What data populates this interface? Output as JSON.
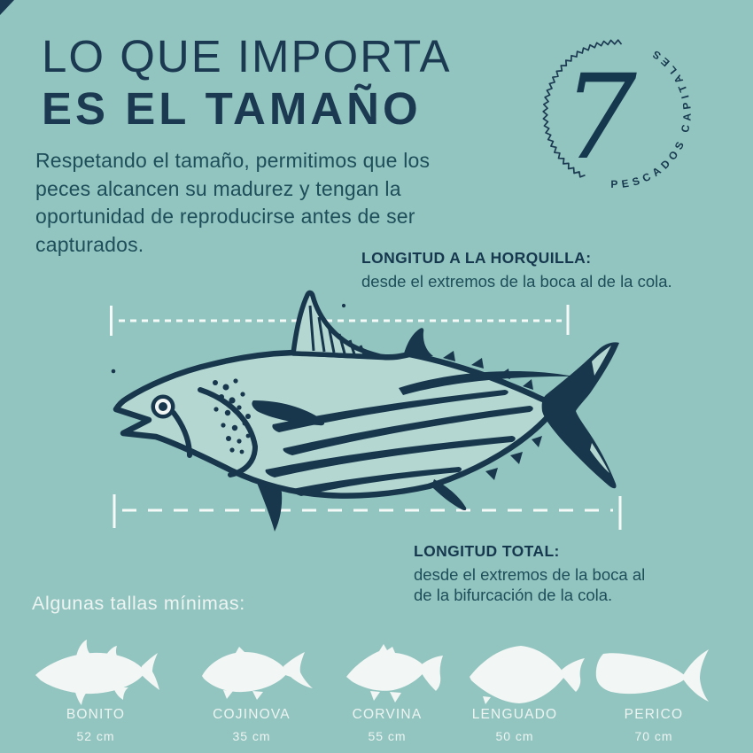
{
  "colors": {
    "background": "#93c5c0",
    "navy": "#1b3a52",
    "teal_text": "#1d4e5a",
    "white_text": "#edf4f2",
    "fish_fill": "#b4d7d1",
    "silhouette": "#f2f6f4"
  },
  "header": {
    "title_line1": "LO QUE IMPORTA",
    "title_line2": "ES EL TAMAÑO",
    "paragraph": "Respetando el tamaño, permitimos que los\npeces alcancen su madurez y tengan la\noportunidad de reproducirse antes de ser\ncapturados."
  },
  "badge": {
    "number": "7",
    "ring_text": "PESCADOS CAPITALES"
  },
  "measurements": {
    "fork": {
      "label": "LONGITUD A LA HORQUILLA:",
      "description": "desde el extremos de la boca al de la cola."
    },
    "total": {
      "label": "LONGITUD TOTAL:",
      "description": "desde el extremos de la boca al\nde la bifurcación de la cola."
    }
  },
  "min_sizes": {
    "heading": "Algunas tallas mínimas:",
    "fishes": [
      {
        "name": "BONITO",
        "size": "52 cm"
      },
      {
        "name": "COJINOVA",
        "size": "35 cm"
      },
      {
        "name": "CORVINA",
        "size": "55 cm"
      },
      {
        "name": "LENGUADO",
        "size": "50 cm"
      },
      {
        "name": "PERICO",
        "size": "70 cm"
      }
    ]
  }
}
